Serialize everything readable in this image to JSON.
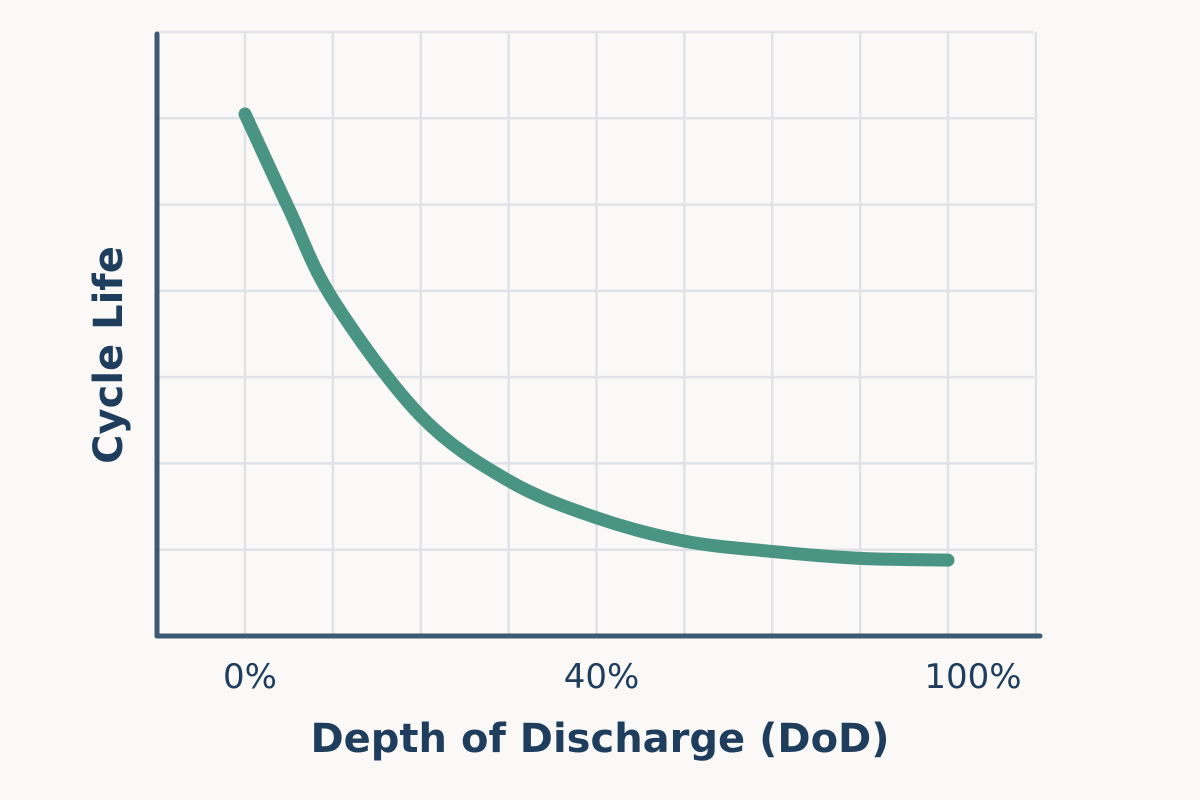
{
  "chart_data": {
    "type": "line",
    "title": "",
    "xlabel": "Depth of Discharge (DoD)",
    "ylabel": "Cycle Life",
    "x_tick_labels": [
      "0%",
      "40%",
      "100%"
    ],
    "y_tick_labels": [],
    "xlim": [
      0,
      100
    ],
    "ylim": [
      0,
      7
    ],
    "grid": true,
    "colors": {
      "line": "#4a9484",
      "axis": "#3d5a73",
      "grid": "#dfe3e8",
      "text": "#1f3d5c",
      "background": "#faf9f7"
    },
    "series": [
      {
        "x": [
          0,
          6.25,
          12.5,
          25,
          37.5,
          50,
          62.5,
          75,
          87.5,
          100
        ],
        "values": [
          6.05,
          4.95,
          3.9,
          2.55,
          1.8,
          1.37,
          1.1,
          0.98,
          0.9,
          0.88
        ]
      }
    ]
  }
}
